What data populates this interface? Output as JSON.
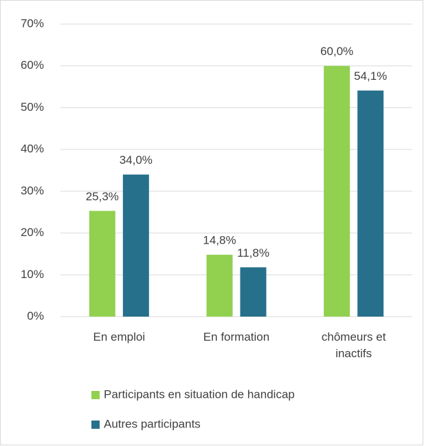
{
  "chart_data": {
    "type": "bar",
    "categories": [
      "En emploi",
      "En formation",
      "chômeurs et inactifs"
    ],
    "series": [
      {
        "name": "Participants en situation de handicap",
        "color": "#92d050",
        "values": [
          25.3,
          14.8,
          60.0
        ],
        "value_labels": [
          "25,3%",
          "14,8%",
          "60,0%"
        ]
      },
      {
        "name": "Autres participants",
        "color": "#26708c",
        "values": [
          34.0,
          11.8,
          54.1
        ],
        "value_labels": [
          "34,0%",
          "11,8%",
          "54,1%"
        ]
      }
    ],
    "ylim": [
      0,
      70
    ],
    "yticks": [
      {
        "value": 0,
        "label": "0%"
      },
      {
        "value": 10,
        "label": "10%"
      },
      {
        "value": 20,
        "label": "20%"
      },
      {
        "value": 30,
        "label": "30%"
      },
      {
        "value": 40,
        "label": "40%"
      },
      {
        "value": 50,
        "label": "50%"
      },
      {
        "value": 60,
        "label": "60%"
      },
      {
        "value": 70,
        "label": "70%"
      }
    ],
    "grid": true,
    "legend": "bottom"
  }
}
